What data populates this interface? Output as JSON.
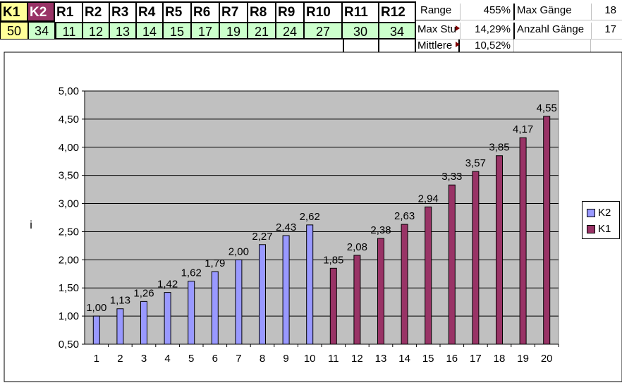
{
  "sheet": {
    "headers": [
      "K1",
      "K2",
      "R1",
      "R2",
      "R3",
      "R4",
      "R5",
      "R6",
      "R7",
      "R8",
      "R9",
      "R10",
      "R11",
      "R12"
    ],
    "values": [
      "50",
      "34",
      "11",
      "12",
      "13",
      "14",
      "15",
      "17",
      "19",
      "21",
      "24",
      "27",
      "30",
      "34"
    ],
    "stats": {
      "range_label": "Range",
      "range_value": "455%",
      "max_gaenge_label": "Max Gänge",
      "max_gaenge_value": "18",
      "max_step_label": "Max Stu",
      "max_step_value": "14,29%",
      "anzahl_label": "Anzahl Gänge",
      "anzahl_value": "17",
      "mittlere_label": "Mittlere",
      "mittlere_value": "10,52%"
    },
    "colors": {
      "k1": "#ffff99",
      "k2": "#993366",
      "green": "#ccffcc"
    }
  },
  "chart_data": {
    "type": "bar",
    "categories": [
      "1",
      "2",
      "3",
      "4",
      "5",
      "6",
      "7",
      "8",
      "9",
      "10",
      "11",
      "12",
      "13",
      "14",
      "15",
      "16",
      "17",
      "18",
      "19",
      "20"
    ],
    "series": [
      {
        "name": "K2",
        "color": "#9999ff",
        "values": [
          1.0,
          1.13,
          1.26,
          1.42,
          1.62,
          1.79,
          2.0,
          2.27,
          2.43,
          2.62,
          null,
          null,
          null,
          null,
          null,
          null,
          null,
          null,
          null,
          null
        ]
      },
      {
        "name": "K1",
        "color": "#993366",
        "values": [
          null,
          null,
          null,
          null,
          null,
          null,
          null,
          null,
          null,
          null,
          1.85,
          2.08,
          2.38,
          2.63,
          2.94,
          3.33,
          3.57,
          3.85,
          4.17,
          4.55
        ]
      }
    ],
    "data_labels": [
      "1,00",
      "1,13",
      "1,26",
      "1,42",
      "1,62",
      "1,79",
      "2,00",
      "2,27",
      "2,43",
      "2,62",
      "1,85",
      "2,08",
      "2,38",
      "2,63",
      "2,94",
      "3,33",
      "3,57",
      "3,85",
      "4,17",
      "4,55"
    ],
    "yticks": [
      "0,50",
      "1,00",
      "1,50",
      "2,00",
      "2,50",
      "3,00",
      "3,50",
      "4,00",
      "4,50",
      "5,00"
    ],
    "ylabel": "i",
    "xlabel": "",
    "ylim": [
      0.5,
      5.0
    ],
    "grid": true,
    "legend": "right",
    "plot_background": "#c0c0c0"
  }
}
